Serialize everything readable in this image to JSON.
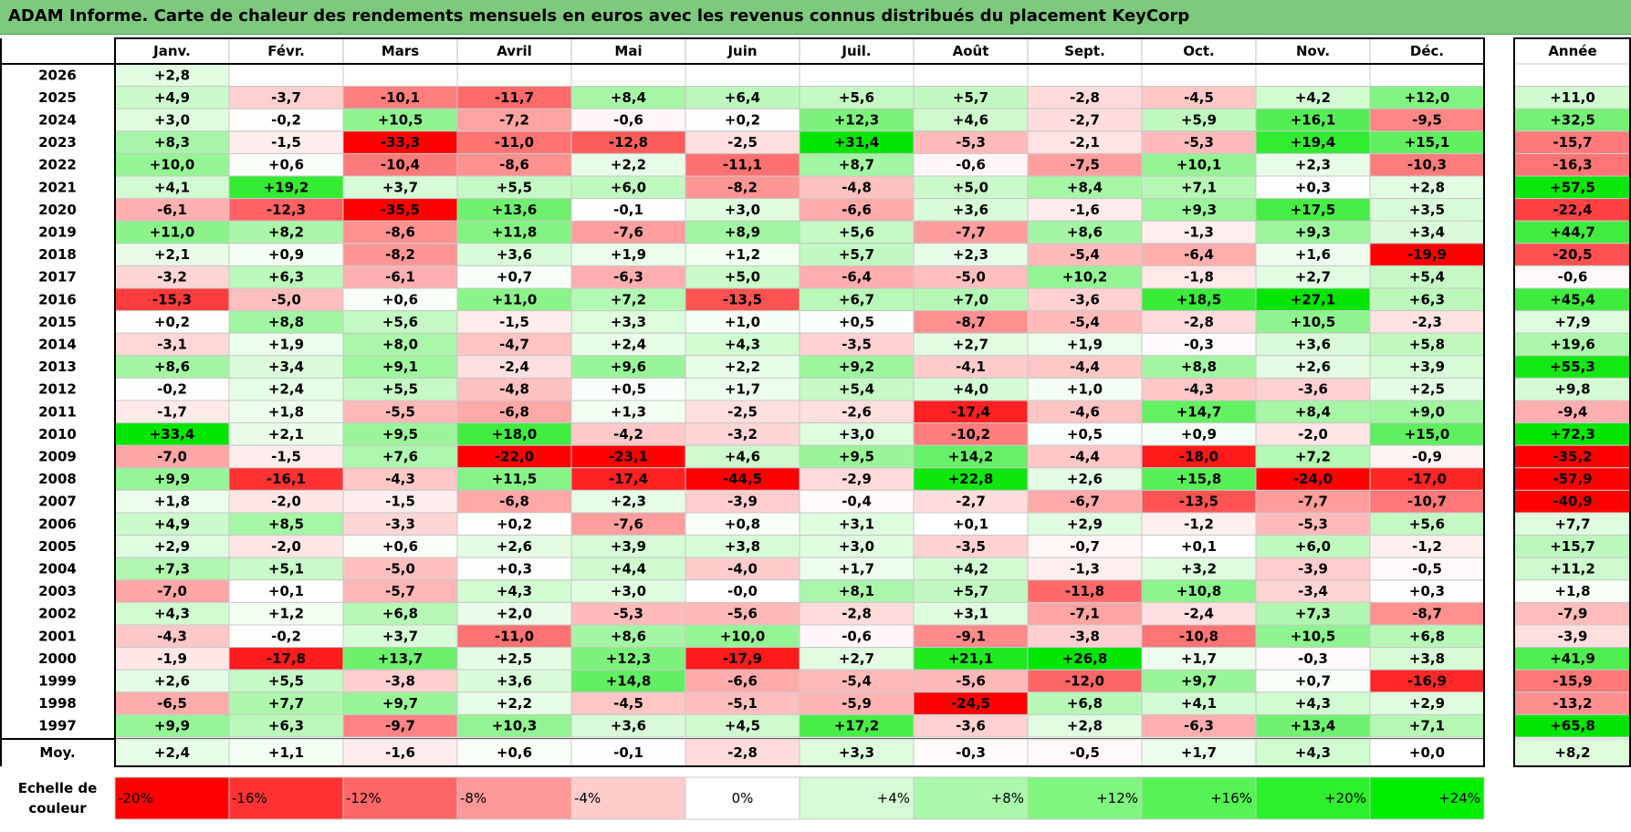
{
  "title": "ADAM Informe. Carte de chaleur des rendements mensuels en euros avec les revenus connus distribués du placement KeyCorp",
  "chart_data": {
    "type": "heatmap",
    "title": "ADAM Informe. Carte de chaleur des rendements mensuels en euros avec les revenus connus distribués du placement KeyCorp",
    "months": [
      "Janv.",
      "Févr.",
      "Mars",
      "Avril",
      "Mai",
      "Juin",
      "Juil.",
      "Août",
      "Sept.",
      "Oct.",
      "Nov.",
      "Déc."
    ],
    "year_header": "Année",
    "rows": [
      {
        "year": "2026",
        "values": [
          "+2,8",
          null,
          null,
          null,
          null,
          null,
          null,
          null,
          null,
          null,
          null,
          null
        ],
        "annual": null
      },
      {
        "year": "2025",
        "values": [
          "+4,9",
          "-3,7",
          "-10,1",
          "-11,7",
          "+8,4",
          "+6,4",
          "+5,6",
          "+5,7",
          "-2,8",
          "-4,5",
          "+4,2",
          "+12,0"
        ],
        "annual": "+11,0"
      },
      {
        "year": "2024",
        "values": [
          "+3,0",
          "-0,2",
          "+10,5",
          "-7,2",
          "-0,6",
          "+0,2",
          "+12,3",
          "+4,6",
          "-2,7",
          "+5,9",
          "+16,1",
          "-9,5"
        ],
        "annual": "+32,5"
      },
      {
        "year": "2023",
        "values": [
          "+8,3",
          "-1,5",
          "-33,3",
          "-11,0",
          "-12,8",
          "-2,5",
          "+31,4",
          "-5,3",
          "-2,1",
          "-5,3",
          "+19,4",
          "+15,1"
        ],
        "annual": "-15,7"
      },
      {
        "year": "2022",
        "values": [
          "+10,0",
          "+0,6",
          "-10,4",
          "-8,6",
          "+2,2",
          "-11,1",
          "+8,7",
          "-0,6",
          "-7,5",
          "+10,1",
          "+2,3",
          "-10,3"
        ],
        "annual": "-16,3"
      },
      {
        "year": "2021",
        "values": [
          "+4,1",
          "+19,2",
          "+3,7",
          "+5,5",
          "+6,0",
          "-8,2",
          "-4,8",
          "+5,0",
          "+8,4",
          "+7,1",
          "+0,3",
          "+2,8"
        ],
        "annual": "+57,5"
      },
      {
        "year": "2020",
        "values": [
          "-6,1",
          "-12,3",
          "-35,5",
          "+13,6",
          "-0,1",
          "+3,0",
          "-6,6",
          "+3,6",
          "-1,6",
          "+9,3",
          "+17,5",
          "+3,5"
        ],
        "annual": "-22,4"
      },
      {
        "year": "2019",
        "values": [
          "+11,0",
          "+8,2",
          "-8,6",
          "+11,8",
          "-7,6",
          "+8,9",
          "+5,6",
          "-7,7",
          "+8,6",
          "-1,3",
          "+9,3",
          "+3,4"
        ],
        "annual": "+44,7"
      },
      {
        "year": "2018",
        "values": [
          "+2,1",
          "+0,9",
          "-8,2",
          "+3,6",
          "+1,9",
          "+1,2",
          "+5,7",
          "+2,3",
          "-5,4",
          "-6,4",
          "+1,6",
          "-19,9"
        ],
        "annual": "-20,5"
      },
      {
        "year": "2017",
        "values": [
          "-3,2",
          "+6,3",
          "-6,1",
          "+0,7",
          "-6,3",
          "+5,0",
          "-6,4",
          "-5,0",
          "+10,2",
          "-1,8",
          "+2,7",
          "+5,4"
        ],
        "annual": "-0,6"
      },
      {
        "year": "2016",
        "values": [
          "-15,3",
          "-5,0",
          "+0,6",
          "+11,0",
          "+7,2",
          "-13,5",
          "+6,7",
          "+7,0",
          "-3,6",
          "+18,5",
          "+27,1",
          "+6,3"
        ],
        "annual": "+45,4"
      },
      {
        "year": "2015",
        "values": [
          "+0,2",
          "+8,8",
          "+5,6",
          "-1,5",
          "+3,3",
          "+1,0",
          "+0,5",
          "-8,7",
          "-5,4",
          "-2,8",
          "+10,5",
          "-2,3"
        ],
        "annual": "+7,9"
      },
      {
        "year": "2014",
        "values": [
          "-3,1",
          "+1,9",
          "+8,0",
          "-4,7",
          "+2,4",
          "+4,3",
          "-3,5",
          "+2,7",
          "+1,9",
          "-0,3",
          "+3,6",
          "+5,8"
        ],
        "annual": "+19,6"
      },
      {
        "year": "2013",
        "values": [
          "+8,6",
          "+3,4",
          "+9,1",
          "-2,4",
          "+9,6",
          "+2,2",
          "+9,2",
          "-4,1",
          "-4,4",
          "+8,8",
          "+2,6",
          "+3,9"
        ],
        "annual": "+55,3"
      },
      {
        "year": "2012",
        "values": [
          "-0,2",
          "+2,4",
          "+5,5",
          "-4,8",
          "+0,5",
          "+1,7",
          "+5,4",
          "+4,0",
          "+1,0",
          "-4,3",
          "-3,6",
          "+2,5"
        ],
        "annual": "+9,8"
      },
      {
        "year": "2011",
        "values": [
          "-1,7",
          "+1,8",
          "-5,5",
          "-6,8",
          "+1,3",
          "-2,5",
          "-2,6",
          "-17,4",
          "-4,6",
          "+14,7",
          "+8,4",
          "+9,0"
        ],
        "annual": "-9,4"
      },
      {
        "year": "2010",
        "values": [
          "+33,4",
          "+2,1",
          "+9,5",
          "+18,0",
          "-4,2",
          "-3,2",
          "+3,0",
          "-10,2",
          "+0,5",
          "+0,9",
          "-2,0",
          "+15,0"
        ],
        "annual": "+72,3"
      },
      {
        "year": "2009",
        "values": [
          "-7,0",
          "-1,5",
          "+7,6",
          "-22,0",
          "-23,1",
          "+4,6",
          "+9,5",
          "+14,2",
          "-4,4",
          "-18,0",
          "+7,2",
          "-0,9"
        ],
        "annual": "-35,2"
      },
      {
        "year": "2008",
        "values": [
          "+9,9",
          "-16,1",
          "-4,3",
          "+11,5",
          "-17,4",
          "-44,5",
          "-2,9",
          "+22,8",
          "+2,6",
          "+15,8",
          "-24,0",
          "-17,0"
        ],
        "annual": "-57,9"
      },
      {
        "year": "2007",
        "values": [
          "+1,8",
          "-2,0",
          "-1,5",
          "-6,8",
          "+2,3",
          "-3,9",
          "-0,4",
          "-2,7",
          "-6,7",
          "-13,5",
          "-7,7",
          "-10,7"
        ],
        "annual": "-40,9"
      },
      {
        "year": "2006",
        "values": [
          "+4,9",
          "+8,5",
          "-3,3",
          "+0,2",
          "-7,6",
          "+0,8",
          "+3,1",
          "+0,1",
          "+2,9",
          "-1,2",
          "-5,3",
          "+5,6"
        ],
        "annual": "+7,7"
      },
      {
        "year": "2005",
        "values": [
          "+2,9",
          "-2,0",
          "+0,6",
          "+2,6",
          "+3,9",
          "+3,8",
          "+3,0",
          "-3,5",
          "-0,7",
          "+0,1",
          "+6,0",
          "-1,2"
        ],
        "annual": "+15,7"
      },
      {
        "year": "2004",
        "values": [
          "+7,3",
          "+5,1",
          "-5,0",
          "+0,3",
          "+4,4",
          "-4,0",
          "+1,7",
          "+4,2",
          "-1,3",
          "+3,2",
          "-3,9",
          "-0,5"
        ],
        "annual": "+11,2"
      },
      {
        "year": "2003",
        "values": [
          "-7,0",
          "+0,1",
          "-5,7",
          "+4,3",
          "+3,0",
          "-0,0",
          "+8,1",
          "+5,7",
          "-11,8",
          "+10,8",
          "-3,4",
          "+0,3"
        ],
        "annual": "+1,8"
      },
      {
        "year": "2002",
        "values": [
          "+4,3",
          "+1,2",
          "+6,8",
          "+2,0",
          "-5,3",
          "-5,6",
          "-2,8",
          "+3,1",
          "-7,1",
          "-2,4",
          "+7,3",
          "-8,7"
        ],
        "annual": "-7,9"
      },
      {
        "year": "2001",
        "values": [
          "-4,3",
          "-0,2",
          "+3,7",
          "-11,0",
          "+8,6",
          "+10,0",
          "-0,6",
          "-9,1",
          "-3,8",
          "-10,8",
          "+10,5",
          "+6,8"
        ],
        "annual": "-3,9"
      },
      {
        "year": "2000",
        "values": [
          "-1,9",
          "-17,8",
          "+13,7",
          "+2,5",
          "+12,3",
          "-17,9",
          "+2,7",
          "+21,1",
          "+26,8",
          "+1,7",
          "-0,3",
          "+3,8"
        ],
        "annual": "+41,9"
      },
      {
        "year": "1999",
        "values": [
          "+2,6",
          "+5,5",
          "-3,8",
          "+3,6",
          "+14,8",
          "-6,6",
          "-5,4",
          "-5,6",
          "-12,0",
          "+9,7",
          "+0,7",
          "-16,9"
        ],
        "annual": "-15,9"
      },
      {
        "year": "1998",
        "values": [
          "-6,5",
          "+7,7",
          "+9,7",
          "+2,2",
          "-4,5",
          "-5,1",
          "-5,9",
          "-24,5",
          "+6,8",
          "+4,1",
          "+4,3",
          "+2,9"
        ],
        "annual": "-13,2"
      },
      {
        "year": "1997",
        "values": [
          "+9,9",
          "+6,3",
          "-9,7",
          "+10,3",
          "+3,6",
          "+4,5",
          "+17,2",
          "-3,6",
          "+2,8",
          "-6,3",
          "+13,4",
          "+7,1"
        ],
        "annual": "+65,8"
      }
    ],
    "average": {
      "label": "Moy.",
      "values": [
        "+2,4",
        "+1,1",
        "-1,6",
        "+0,6",
        "-0,1",
        "-2,8",
        "+3,3",
        "-0,3",
        "-0,5",
        "+1,7",
        "+4,3",
        "+0,0"
      ],
      "annual": "+8,2"
    },
    "scale": {
      "label_line1": "Echelle de",
      "label_line2": "couleur",
      "stops": [
        {
          "label": "-20%",
          "value": -20,
          "color": "#ff0000"
        },
        {
          "label": "-16%",
          "value": -16,
          "color": "#ff3333"
        },
        {
          "label": "-12%",
          "value": -12,
          "color": "#ff6666"
        },
        {
          "label": "-8%",
          "value": -8,
          "color": "#ff9999"
        },
        {
          "label": "-4%",
          "value": -4,
          "color": "#ffcccc"
        },
        {
          "label": "0%",
          "value": 0,
          "color": "#ffffff"
        },
        {
          "label": "+4%",
          "value": 4,
          "color": "#d5fcd5"
        },
        {
          "label": "+8%",
          "value": 8,
          "color": "#aaf9aa"
        },
        {
          "label": "+12%",
          "value": 12,
          "color": "#80f680"
        },
        {
          "label": "+16%",
          "value": 16,
          "color": "#55f355"
        },
        {
          "label": "+20%",
          "value": 20,
          "color": "#2bf02b"
        },
        {
          "label": "+24%",
          "value": 24,
          "color": "#00ed00"
        }
      ]
    },
    "colors": {
      "negative_max": "#ff0000",
      "positive_max": "#00e600",
      "neutral": "#ffffff"
    }
  }
}
